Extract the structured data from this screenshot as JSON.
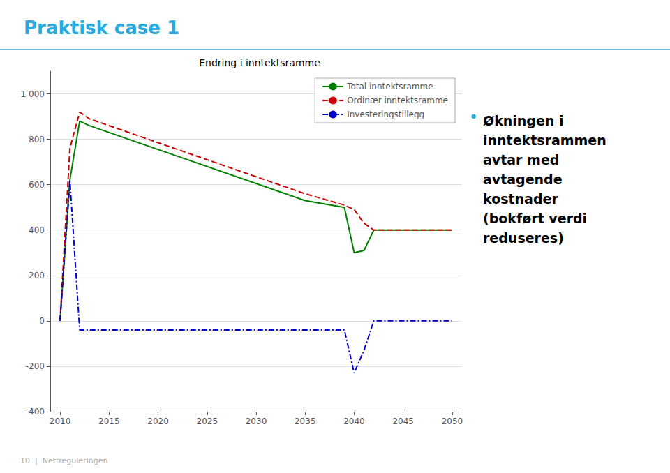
{
  "chart_data": {
    "type": "line",
    "title": "Endring i inntektsramme",
    "page_title": {
      "text": "Praktisk case 1",
      "color": "#29abe2"
    },
    "footer": {
      "text": "10  |  Nettreguleringen",
      "color": "#aaaaaa"
    },
    "annotation": {
      "bullet": "•",
      "bullet_color": "#29abe2",
      "color": "#000000",
      "lines": [
        "Økningen i",
        "inntektsrammen",
        "avtar med",
        "avtagende",
        "kostnader",
        "(bokført verdi",
        "reduseres)"
      ]
    },
    "x": [
      2010,
      2011,
      2012,
      2013,
      2035,
      2039,
      2040,
      2041,
      2042,
      2050
    ],
    "series": [
      {
        "name": "Total inntektsramme",
        "color": "#008000",
        "line_style": "solid",
        "values": [
          0,
          620,
          880,
          860,
          530,
          500,
          300,
          310,
          400,
          400
        ]
      },
      {
        "name": "Ordinær inntektsramme",
        "color": "#cc0000",
        "line_style": "dashed",
        "values": [
          0,
          760,
          920,
          890,
          560,
          510,
          490,
          430,
          400,
          400
        ]
      },
      {
        "name": "Investeringstillegg",
        "color": "#0000cc",
        "line_style": "dashdot",
        "values": [
          0,
          620,
          -40,
          -40,
          -40,
          -40,
          -230,
          -130,
          0,
          0
        ]
      }
    ],
    "xlim": [
      2009,
      2051
    ],
    "xticks": [
      2010,
      2015,
      2020,
      2025,
      2030,
      2035,
      2040,
      2045,
      2050
    ],
    "ylim": [
      -400,
      1100
    ],
    "yticks": [
      -400,
      -200,
      0,
      200,
      400,
      600,
      800,
      {
        "value": 1000,
        "label": "1 000"
      }
    ],
    "grid": true,
    "legend": "upper right"
  }
}
